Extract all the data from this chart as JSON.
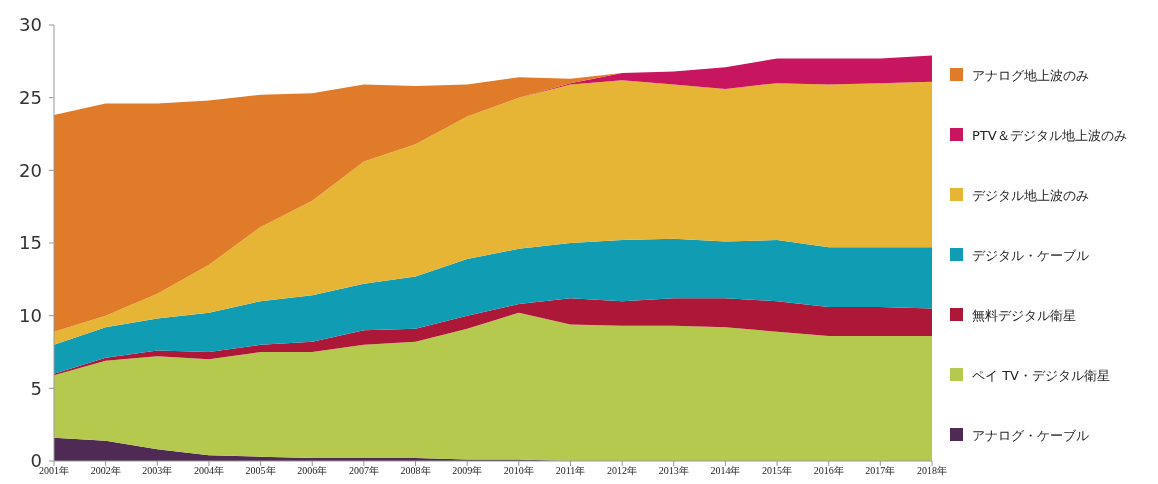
{
  "chart_data": {
    "type": "area",
    "stacked": true,
    "categories": [
      "2001年",
      "2002年",
      "2003年",
      "2004年",
      "2005年",
      "2006年",
      "2007年",
      "2008年",
      "2009年",
      "2010年",
      "2011年",
      "2012年",
      "2013年",
      "2014年",
      "2015年",
      "2016年",
      "2017年",
      "2018年"
    ],
    "series": [
      {
        "name": "アナログ・ケーブル",
        "color": "#4e2a55",
        "values": [
          1.6,
          1.4,
          0.8,
          0.4,
          0.3,
          0.2,
          0.2,
          0.2,
          0.1,
          0.1,
          0,
          0,
          0,
          0,
          0,
          0,
          0,
          0
        ]
      },
      {
        "name": "ペイ TV・デジタル衛星",
        "color": "#b5c94f",
        "values": [
          4.3,
          5.5,
          6.4,
          6.6,
          7.2,
          7.3,
          7.8,
          8.0,
          9.0,
          10.1,
          9.4,
          9.3,
          9.3,
          9.2,
          8.9,
          8.6,
          8.6,
          8.6
        ]
      },
      {
        "name": "無料デジタル衛星",
        "color": "#ad1838",
        "values": [
          0.1,
          0.2,
          0.4,
          0.5,
          0.5,
          0.7,
          1.0,
          0.9,
          0.9,
          0.6,
          1.8,
          1.7,
          1.9,
          2.0,
          2.1,
          2.0,
          2.0,
          1.9
        ]
      },
      {
        "name": "デジタル・ケーブル",
        "color": "#109db4",
        "values": [
          2.0,
          2.1,
          2.2,
          2.7,
          3.0,
          3.2,
          3.2,
          3.6,
          3.9,
          3.8,
          3.8,
          4.2,
          4.1,
          3.9,
          4.2,
          4.1,
          4.1,
          4.2
        ]
      },
      {
        "name": "デジタル地上波のみ",
        "color": "#e6b536",
        "values": [
          0.9,
          0.8,
          1.7,
          3.3,
          5.1,
          6.5,
          8.4,
          9.1,
          9.8,
          10.4,
          10.9,
          11.0,
          10.6,
          10.5,
          10.8,
          11.2,
          11.3,
          11.4
        ]
      },
      {
        "name": "PTV＆デジタル地上波のみ",
        "color": "#c8155f",
        "values": [
          null,
          null,
          null,
          null,
          null,
          null,
          null,
          null,
          null,
          0,
          0.1,
          0.5,
          0.9,
          1.5,
          1.7,
          1.8,
          1.7,
          1.8
        ]
      },
      {
        "name": "アナログ地上波のみ",
        "color": "#e07b29",
        "values": [
          14.9,
          14.6,
          13.1,
          11.3,
          9.1,
          7.4,
          5.3,
          4.0,
          2.2,
          1.4,
          0.3,
          0,
          null,
          null,
          null,
          null,
          null,
          null
        ]
      }
    ],
    "ylim": [
      0,
      30
    ],
    "yticks": [
      0,
      5,
      10,
      15,
      20,
      25,
      30
    ],
    "grid": false,
    "legend": "right"
  }
}
